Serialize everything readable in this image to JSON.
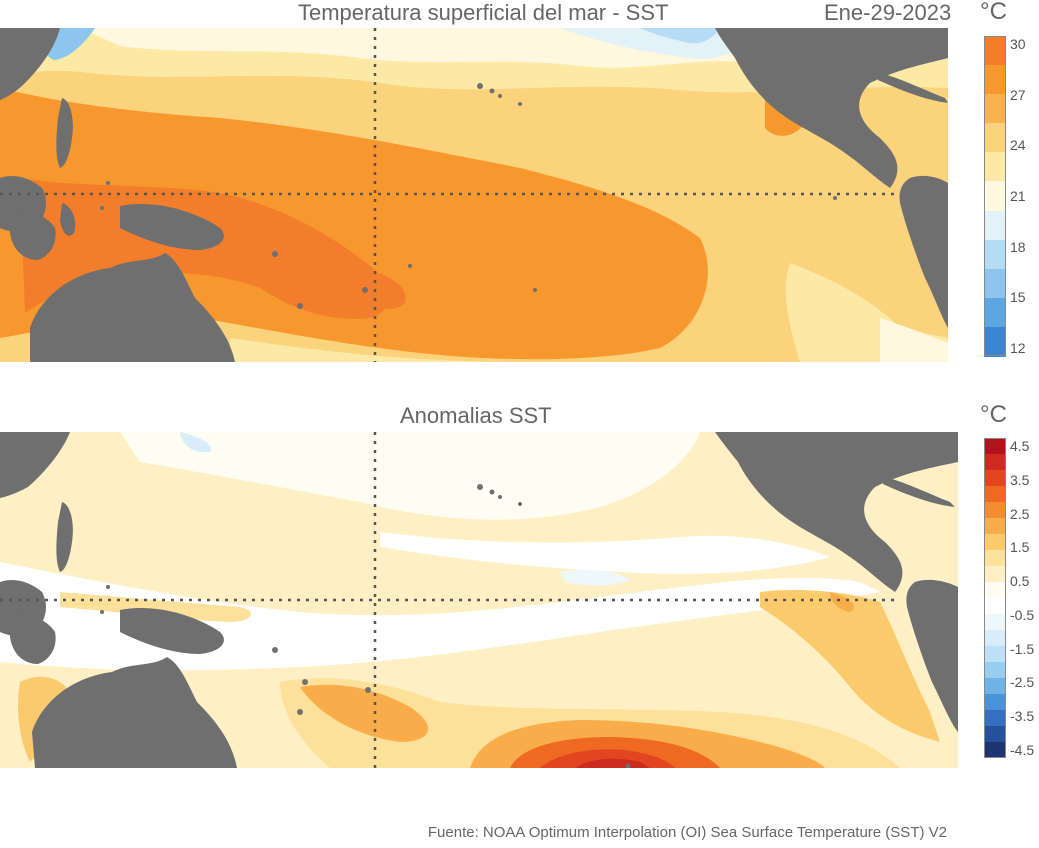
{
  "top_panel": {
    "title": "Temperatura superficial del mar - SST",
    "date": "Ene-29-2023",
    "unit": "°C",
    "colorbar": {
      "ticks": [
        "30",
        "27",
        "24",
        "21",
        "18",
        "15",
        "12"
      ],
      "colors": [
        "#f27e2b",
        "#f7982e",
        "#f9b24d",
        "#fcd37d",
        "#fde9a6",
        "#fff8df",
        "#e3f1f9",
        "#b6dcf5",
        "#8cc6ee",
        "#5ea6e0",
        "#3d85cf"
      ]
    },
    "background_color": "#fcd37d",
    "land_color": "#6f6f6f"
  },
  "bottom_panel": {
    "title": "Anomalias SST",
    "unit": "°C",
    "colorbar": {
      "ticks": [
        "4.5",
        "3.5",
        "2.5",
        "1.5",
        "0.5",
        "-0.5",
        "-1.5",
        "-2.5",
        "-3.5",
        "-4.5"
      ],
      "colors": [
        "#b0141c",
        "#cf2a20",
        "#e2451f",
        "#ee6a22",
        "#f48c31",
        "#f9ad4a",
        "#fbca6d",
        "#fde09a",
        "#fef0c4",
        "#fffdf3",
        "#ffffff",
        "#eef7fc",
        "#d8edf9",
        "#bce0f5",
        "#97cdef",
        "#6fb3e6",
        "#4b93d7",
        "#3470bd",
        "#25509a",
        "#1c3572"
      ]
    },
    "background_color": "#fff4d2",
    "land_color": "#6f6f6f"
  },
  "footer": {
    "source": "Fuente: NOAA Optimum Interpolation (OI) Sea Surface Temperature (SST) V2"
  }
}
